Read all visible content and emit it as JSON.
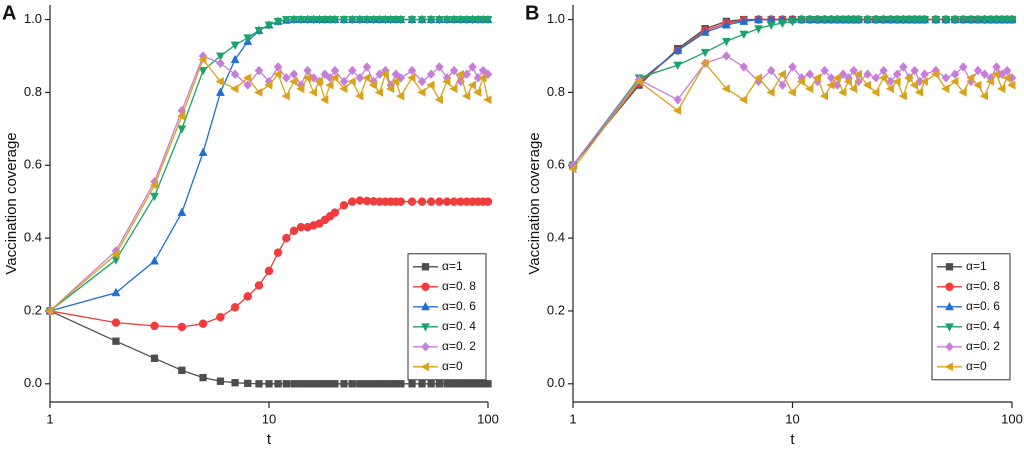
{
  "chart_data": [
    {
      "type": "line",
      "title": "A",
      "xlabel": "t",
      "ylabel": "Vaccination coverage",
      "log_x": true,
      "legend": "lower right",
      "xlim": [
        1,
        100
      ],
      "xticks": [
        1,
        10,
        100
      ],
      "ylim": [
        -0.05,
        1.04
      ],
      "yticks": [
        {
          "value": 0,
          "label": "0.0"
        },
        {
          "value": 0.2,
          "label": "0.2"
        },
        {
          "value": 0.4,
          "label": "0.4"
        },
        {
          "value": 0.6,
          "label": "0.6"
        },
        {
          "value": 0.8,
          "label": "0.8"
        },
        {
          "value": 1,
          "label": "1.0"
        }
      ],
      "x": [
        1,
        2,
        3,
        4,
        5,
        6,
        7,
        8,
        9,
        10,
        11,
        12,
        13,
        14,
        15,
        16,
        17,
        18,
        19,
        20,
        22,
        24,
        26,
        28,
        30,
        32,
        34,
        36,
        38,
        40,
        45,
        50,
        55,
        60,
        65,
        70,
        75,
        80,
        85,
        90,
        95,
        100
      ],
      "series": [
        {
          "name": "α=1",
          "color": "#4d4d4d",
          "marker": "square",
          "values": [
            0.2,
            0.117,
            0.07,
            0.037,
            0.017,
            0.007,
            0.003,
            0.001,
            0,
            0,
            0,
            0,
            0,
            0,
            0,
            0,
            0,
            0,
            0,
            0,
            0,
            0,
            0,
            0,
            0,
            0,
            0,
            0,
            0,
            0,
            0,
            0,
            0,
            0,
            0,
            0,
            0,
            0,
            0,
            0,
            0,
            0
          ]
        },
        {
          "name": "α=0. 8",
          "color": "#f03c3c",
          "marker": "circle",
          "values": [
            0.2,
            0.168,
            0.159,
            0.156,
            0.165,
            0.183,
            0.21,
            0.24,
            0.27,
            0.31,
            0.36,
            0.4,
            0.42,
            0.43,
            0.43,
            0.435,
            0.44,
            0.45,
            0.46,
            0.47,
            0.49,
            0.5,
            0.503,
            0.502,
            0.501,
            0.5,
            0.5,
            0.5,
            0.5,
            0.5,
            0.5,
            0.5,
            0.5,
            0.5,
            0.5,
            0.5,
            0.5,
            0.5,
            0.5,
            0.5,
            0.5,
            0.5
          ]
        },
        {
          "name": "α=0. 6",
          "color": "#1f6fd0",
          "marker": "tri-up",
          "values": [
            0.2,
            0.25,
            0.337,
            0.47,
            0.635,
            0.8,
            0.89,
            0.94,
            0.97,
            0.985,
            0.995,
            0.998,
            1,
            1,
            1,
            1,
            1,
            1,
            1,
            1,
            1,
            1,
            1,
            1,
            1,
            1,
            1,
            1,
            1,
            1,
            1,
            1,
            1,
            1,
            1,
            1,
            1,
            1,
            1,
            1,
            1,
            1
          ]
        },
        {
          "name": "α=0. 4",
          "color": "#1aa36b",
          "marker": "tri-down",
          "values": [
            0.2,
            0.34,
            0.515,
            0.7,
            0.86,
            0.9,
            0.93,
            0.95,
            0.97,
            0.985,
            0.995,
            1,
            1,
            1,
            1,
            1,
            1,
            1,
            1,
            1,
            1,
            1,
            1,
            1,
            1,
            1,
            1,
            1,
            1,
            1,
            1,
            1,
            1,
            1,
            1,
            1,
            1,
            1,
            1,
            1,
            1,
            1
          ]
        },
        {
          "name": "α=0. 2",
          "color": "#c77dd9",
          "marker": "diamond",
          "values": [
            0.2,
            0.365,
            0.555,
            0.75,
            0.9,
            0.88,
            0.85,
            0.82,
            0.86,
            0.83,
            0.87,
            0.84,
            0.85,
            0.82,
            0.86,
            0.84,
            0.83,
            0.85,
            0.84,
            0.86,
            0.83,
            0.86,
            0.84,
            0.87,
            0.83,
            0.85,
            0.86,
            0.82,
            0.85,
            0.84,
            0.86,
            0.83,
            0.85,
            0.87,
            0.84,
            0.86,
            0.83,
            0.85,
            0.87,
            0.84,
            0.86,
            0.85
          ]
        },
        {
          "name": "α=0",
          "color": "#d9a21a",
          "marker": "tri-left",
          "values": [
            0.2,
            0.355,
            0.545,
            0.735,
            0.89,
            0.83,
            0.81,
            0.84,
            0.8,
            0.82,
            0.85,
            0.79,
            0.83,
            0.81,
            0.84,
            0.8,
            0.83,
            0.78,
            0.82,
            0.84,
            0.81,
            0.83,
            0.79,
            0.84,
            0.82,
            0.8,
            0.85,
            0.81,
            0.83,
            0.79,
            0.84,
            0.8,
            0.82,
            0.78,
            0.83,
            0.81,
            0.85,
            0.79,
            0.82,
            0.8,
            0.84,
            0.78
          ]
        }
      ]
    },
    {
      "type": "line",
      "title": "B",
      "xlabel": "t",
      "ylabel": "Vaccination coverage",
      "log_x": true,
      "legend": "lower right",
      "xlim": [
        1,
        100
      ],
      "xticks": [
        1,
        10,
        100
      ],
      "ylim": [
        -0.05,
        1.04
      ],
      "yticks": [
        {
          "value": 0,
          "label": "0.0"
        },
        {
          "value": 0.2,
          "label": "0.2"
        },
        {
          "value": 0.4,
          "label": "0.4"
        },
        {
          "value": 0.6,
          "label": "0.6"
        },
        {
          "value": 0.8,
          "label": "0.8"
        },
        {
          "value": 1,
          "label": "1.0"
        }
      ],
      "x": [
        1,
        2,
        3,
        4,
        5,
        6,
        7,
        8,
        9,
        10,
        11,
        12,
        13,
        14,
        15,
        16,
        17,
        18,
        19,
        20,
        22,
        24,
        26,
        28,
        30,
        32,
        34,
        36,
        38,
        40,
        45,
        50,
        55,
        60,
        65,
        70,
        75,
        80,
        85,
        90,
        95,
        100
      ],
      "series": [
        {
          "name": "α=1",
          "color": "#4d4d4d",
          "marker": "square",
          "values": [
            0.6,
            0.82,
            0.92,
            0.975,
            0.995,
            1,
            1,
            1,
            1,
            1,
            1,
            1,
            1,
            1,
            1,
            1,
            1,
            1,
            1,
            1,
            1,
            1,
            1,
            1,
            1,
            1,
            1,
            1,
            1,
            1,
            1,
            1,
            1,
            1,
            1,
            1,
            1,
            1,
            1,
            1,
            1,
            1
          ]
        },
        {
          "name": "α=0. 8",
          "color": "#f03c3c",
          "marker": "circle",
          "values": [
            0.6,
            0.825,
            0.915,
            0.97,
            0.99,
            0.998,
            1,
            1,
            1,
            1,
            1,
            1,
            1,
            1,
            1,
            1,
            1,
            1,
            1,
            1,
            1,
            1,
            1,
            1,
            1,
            1,
            1,
            1,
            1,
            1,
            1,
            1,
            1,
            1,
            1,
            1,
            1,
            1,
            1,
            1,
            1,
            1
          ]
        },
        {
          "name": "α=0. 6",
          "color": "#1f6fd0",
          "marker": "tri-up",
          "values": [
            0.6,
            0.83,
            0.915,
            0.965,
            0.985,
            0.995,
            1,
            1,
            1,
            1,
            1,
            1,
            1,
            1,
            1,
            1,
            1,
            1,
            1,
            1,
            1,
            1,
            1,
            1,
            1,
            1,
            1,
            1,
            1,
            1,
            1,
            1,
            1,
            1,
            1,
            1,
            1,
            1,
            1,
            1,
            1,
            1
          ]
        },
        {
          "name": "α=0. 4",
          "color": "#1aa36b",
          "marker": "tri-down",
          "values": [
            0.6,
            0.84,
            0.875,
            0.91,
            0.94,
            0.96,
            0.975,
            0.985,
            0.99,
            0.995,
            1,
            1,
            1,
            1,
            1,
            1,
            1,
            1,
            1,
            1,
            1,
            1,
            1,
            1,
            1,
            1,
            1,
            1,
            1,
            1,
            1,
            1,
            1,
            1,
            1,
            1,
            1,
            1,
            1,
            1,
            1,
            1
          ]
        },
        {
          "name": "α=0. 2",
          "color": "#c77dd9",
          "marker": "diamond",
          "values": [
            0.6,
            0.835,
            0.78,
            0.88,
            0.9,
            0.87,
            0.83,
            0.86,
            0.82,
            0.87,
            0.84,
            0.85,
            0.83,
            0.86,
            0.84,
            0.82,
            0.85,
            0.84,
            0.86,
            0.83,
            0.85,
            0.84,
            0.86,
            0.83,
            0.85,
            0.87,
            0.84,
            0.86,
            0.83,
            0.85,
            0.86,
            0.84,
            0.85,
            0.87,
            0.83,
            0.86,
            0.85,
            0.84,
            0.87,
            0.85,
            0.86,
            0.84
          ]
        },
        {
          "name": "α=0",
          "color": "#d9a21a",
          "marker": "tri-left",
          "values": [
            0.59,
            0.83,
            0.75,
            0.88,
            0.81,
            0.78,
            0.84,
            0.8,
            0.85,
            0.8,
            0.83,
            0.81,
            0.84,
            0.79,
            0.82,
            0.84,
            0.8,
            0.83,
            0.81,
            0.85,
            0.82,
            0.8,
            0.84,
            0.81,
            0.83,
            0.79,
            0.84,
            0.82,
            0.8,
            0.83,
            0.85,
            0.81,
            0.83,
            0.8,
            0.84,
            0.82,
            0.79,
            0.83,
            0.85,
            0.81,
            0.84,
            0.82
          ]
        }
      ]
    }
  ]
}
